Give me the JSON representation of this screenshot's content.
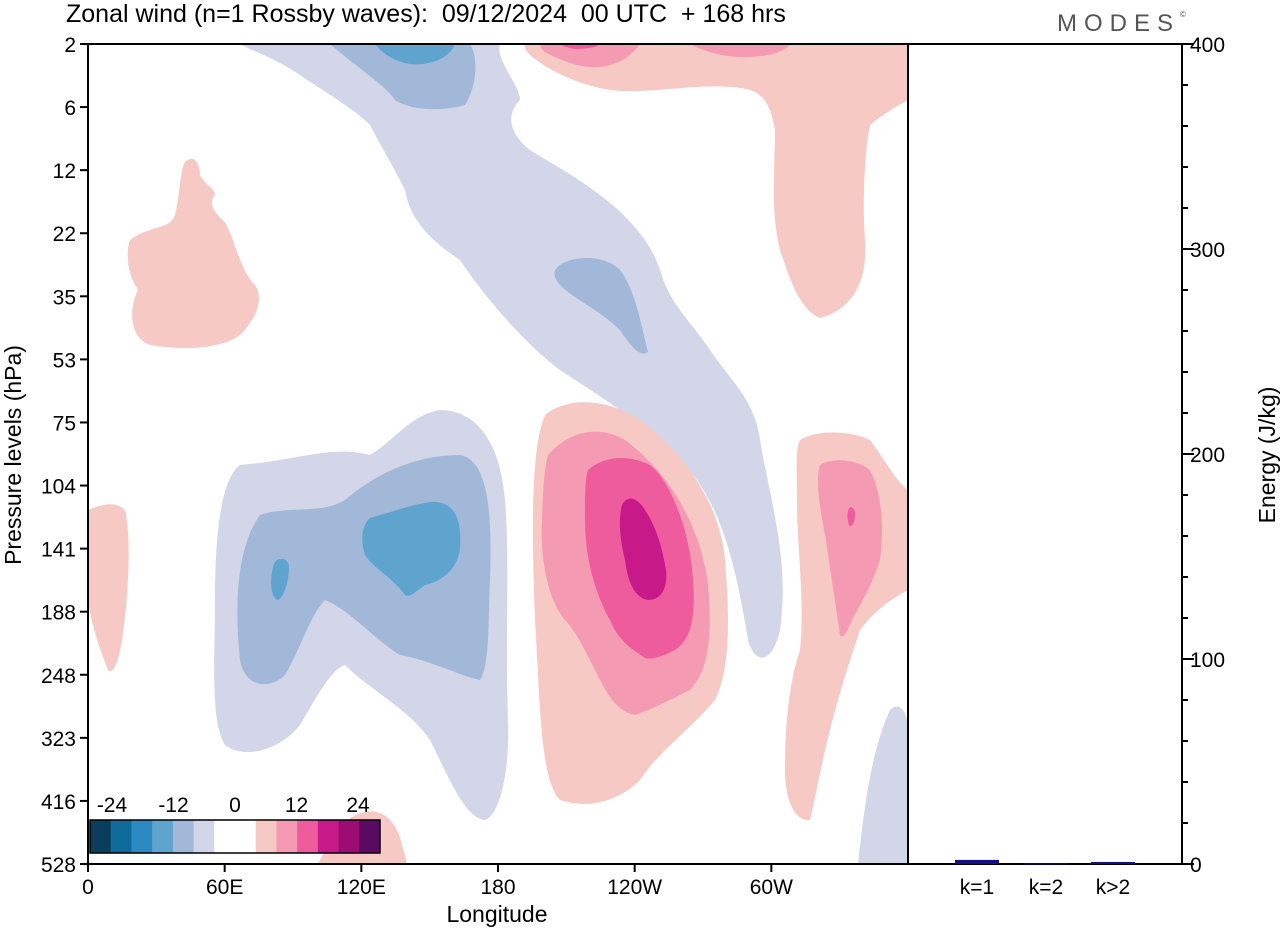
{
  "header": {
    "title": "Zonal wind (n=1 Rossby waves):  09/12/2024  00 UTC  + 168 hrs",
    "logo": "MODES",
    "logo_mark": "©"
  },
  "chart_data": [
    {
      "type": "heatmap",
      "title": "Zonal wind (n=1 Rossby waves):  09/12/2024  00 UTC  + 168 hrs",
      "xlabel": "Longitude",
      "ylabel": "Pressure levels (hPa)",
      "x_ticks": [
        "0",
        "60E",
        "120E",
        "180",
        "120W",
        "60W"
      ],
      "y_ticks": [
        "2",
        "6",
        "12",
        "22",
        "35",
        "53",
        "75",
        "104",
        "141",
        "188",
        "248",
        "323",
        "416",
        "528"
      ],
      "colorbar": {
        "tick_labels": [
          "-24",
          "-12",
          "0",
          "12",
          "24"
        ],
        "colors": [
          "#0b3d5c",
          "#0e6b9c",
          "#2c8ac2",
          "#5fa3cf",
          "#a2b8d8",
          "#d3d5e8",
          "#ffffff",
          "#ffffff",
          "#f7c9c4",
          "#f59ab3",
          "#ee5c9d",
          "#c71a88",
          "#9c0c72",
          "#5a0a63"
        ]
      },
      "contours": [
        {
          "level": "weak negative",
          "color": "#d3d5e8"
        },
        {
          "level": "moderate negative",
          "color": "#a2b8d8"
        },
        {
          "level": "strong negative",
          "color": "#5fa3cf"
        },
        {
          "level": "weak positive",
          "color": "#f7c9c4"
        },
        {
          "level": "moderate positive",
          "color": "#f59ab3"
        },
        {
          "level": "strong positive",
          "color": "#ee5c9d"
        },
        {
          "level": "very strong positive",
          "color": "#c71a88"
        }
      ]
    },
    {
      "type": "bar",
      "ylabel": "Energy (J/kg)",
      "categories": [
        "k=1",
        "k=2",
        "k>2"
      ],
      "values": [
        2,
        0.3,
        1
      ],
      "ylim": [
        0,
        400
      ],
      "y_ticks": [
        "0",
        "100",
        "200",
        "300",
        "400"
      ],
      "bar_colors": [
        "#101080",
        "#101080",
        "#101080"
      ]
    }
  ]
}
